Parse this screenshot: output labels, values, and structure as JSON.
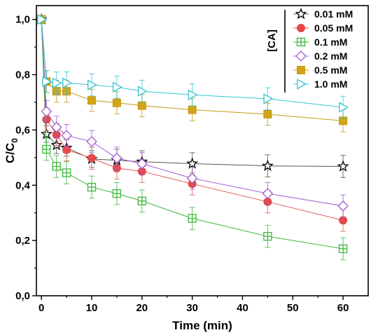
{
  "chart_data": {
    "type": "line",
    "title": "",
    "xlabel": "Time (min)",
    "ylabel_main": "C/C",
    "ylabel_sub": "0",
    "xlim": [
      -1,
      65
    ],
    "ylim": [
      0,
      1.05
    ],
    "xticks": [
      0,
      10,
      20,
      30,
      40,
      50,
      60
    ],
    "xtick_labels": [
      "0",
      "10",
      "20",
      "30",
      "40",
      "50",
      "60"
    ],
    "yticks": [
      0.0,
      0.2,
      0.4,
      0.6,
      0.8,
      1.0
    ],
    "ytick_labels": [
      "0,0",
      "0,2",
      "0,4",
      "0,6",
      "0,8",
      "1,0"
    ],
    "grid": false,
    "legend_title": "[CA]",
    "legend_position": "top-right",
    "x": [
      0,
      1,
      3,
      5,
      10,
      15,
      20,
      30,
      45,
      60
    ],
    "series": [
      {
        "name": "0.01 mM",
        "marker": "star",
        "color": "#000000",
        "fill": "none",
        "line_color": "#555555",
        "values": [
          1.0,
          0.585,
          0.545,
          0.535,
          0.495,
          0.49,
          0.485,
          0.478,
          0.47,
          0.468
        ],
        "errors": [
          0.01,
          0.03,
          0.03,
          0.03,
          0.03,
          0.04,
          0.04,
          0.04,
          0.04,
          0.04
        ]
      },
      {
        "name": "0.05 mM",
        "marker": "circle",
        "color": "#d94a4a",
        "fill": "#e84848",
        "line_color": "#e05a5a",
        "values": [
          1.0,
          0.638,
          0.583,
          0.528,
          0.498,
          0.462,
          0.45,
          0.405,
          0.34,
          0.273
        ],
        "errors": [
          0.01,
          0.04,
          0.04,
          0.04,
          0.04,
          0.04,
          0.04,
          0.04,
          0.04,
          0.04
        ]
      },
      {
        "name": "0.1 mM",
        "marker": "square-plus",
        "color": "#3cb83c",
        "fill": "none",
        "line_color": "#3cb83c",
        "values": [
          1.0,
          0.53,
          0.468,
          0.445,
          0.393,
          0.37,
          0.343,
          0.28,
          0.215,
          0.17
        ],
        "errors": [
          0.01,
          0.04,
          0.04,
          0.04,
          0.04,
          0.04,
          0.04,
          0.04,
          0.04,
          0.04
        ]
      },
      {
        "name": "0.2 mM",
        "marker": "diamond",
        "color": "#a45ad0",
        "fill": "none",
        "line_color": "#a45ad0",
        "values": [
          1.0,
          0.667,
          0.61,
          0.58,
          0.558,
          0.498,
          0.478,
          0.425,
          0.37,
          0.325
        ],
        "errors": [
          0.01,
          0.04,
          0.04,
          0.04,
          0.04,
          0.04,
          0.04,
          0.04,
          0.04,
          0.04
        ]
      },
      {
        "name": "0.5 mM",
        "marker": "square",
        "color": "#c59a12",
        "fill": "#d4a418",
        "line_color": "#c59a12",
        "values": [
          1.0,
          0.775,
          0.74,
          0.74,
          0.707,
          0.698,
          0.688,
          0.673,
          0.657,
          0.633
        ],
        "errors": [
          0.01,
          0.04,
          0.04,
          0.04,
          0.04,
          0.04,
          0.04,
          0.04,
          0.04,
          0.04
        ]
      },
      {
        "name": "1.0 mM",
        "marker": "triangle-right",
        "color": "#33c6d6",
        "fill": "none",
        "line_color": "#33c6d6",
        "values": [
          1.0,
          0.775,
          0.77,
          0.77,
          0.763,
          0.755,
          0.74,
          0.727,
          0.713,
          0.682
        ],
        "errors": [
          0.01,
          0.04,
          0.04,
          0.04,
          0.04,
          0.04,
          0.04,
          0.04,
          0.04,
          0.04
        ]
      }
    ]
  }
}
